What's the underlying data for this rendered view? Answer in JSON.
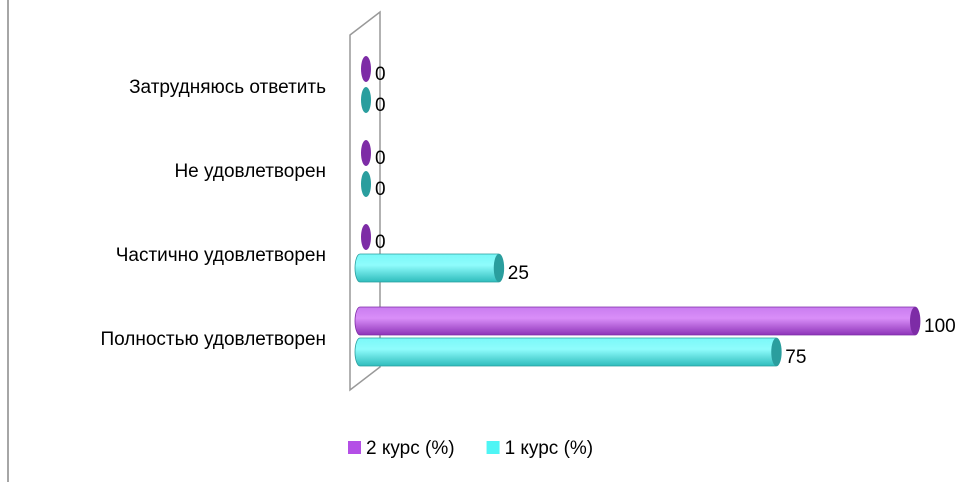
{
  "chart_data": {
    "type": "bar",
    "orientation": "horizontal",
    "categories": [
      "Полностью удовлетворен",
      "Частично удовлетворен",
      "Не удовлетворен",
      "Затрудняюсь ответить"
    ],
    "series": [
      {
        "name": "2 курс (%)",
        "color": "#b44fe6",
        "values": [
          100,
          0,
          0,
          0
        ]
      },
      {
        "name": "1 курс (%)",
        "color": "#4ff5f5",
        "values": [
          75,
          25,
          0,
          0
        ]
      }
    ],
    "xlim": [
      0,
      100
    ],
    "legend": "bottom"
  }
}
